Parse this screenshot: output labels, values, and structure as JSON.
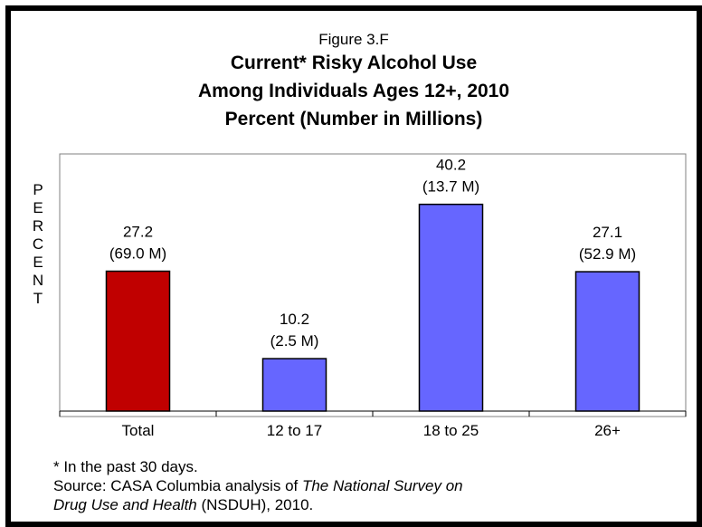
{
  "chart_data": {
    "type": "bar",
    "figure_label": "Figure 3.F",
    "title_lines": [
      "Current* Risky Alcohol Use",
      "Among Individuals Ages 12+, 2010",
      "Percent (Number in Millions)"
    ],
    "ylabel": "PERCENT",
    "xlabel": "",
    "categories": [
      "Total",
      "12 to 17",
      "18 to 25",
      "26+"
    ],
    "values": [
      27.2,
      10.2,
      40.2,
      27.1
    ],
    "value_labels": [
      "27.2",
      "10.2",
      "40.2",
      "27.1"
    ],
    "number_labels": [
      "(69.0 M)",
      "(2.5 M)",
      "(13.7 M)",
      "(52.9 M)"
    ],
    "bar_colors": [
      "#c00000",
      "#6666ff",
      "#6666ff",
      "#6666ff"
    ],
    "ylim": [
      0,
      50
    ],
    "grid": false,
    "legend": false
  },
  "footnote": {
    "line1": "* In the past 30 days.",
    "line2_prefix": "Source:  CASA Columbia analysis of ",
    "line2_italic": "The National Survey on",
    "line3_italic": "Drug Use and Health",
    "line3_suffix": " (NSDUH), 2010."
  }
}
